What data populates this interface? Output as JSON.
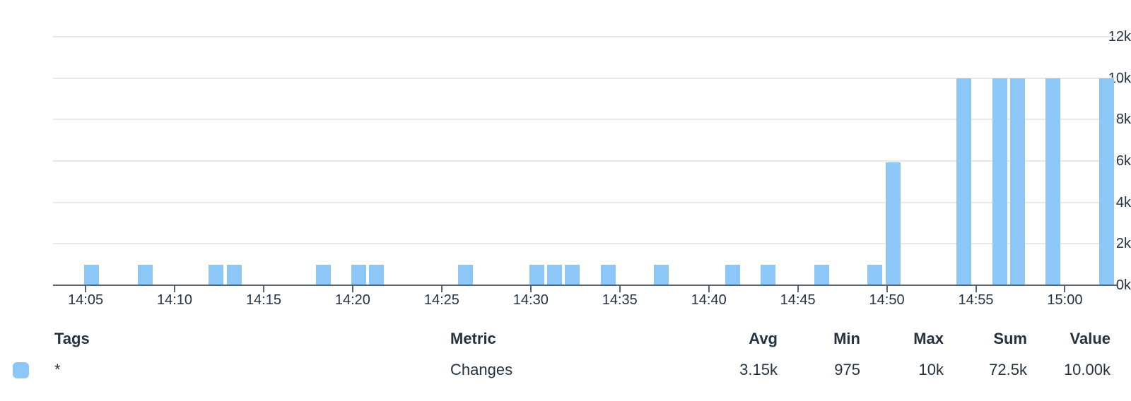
{
  "colors": {
    "bar": "#8DC7F7",
    "grid": "#E8E8E8",
    "axis": "#5A6572",
    "text": "#243342",
    "background": "#FFFFFF"
  },
  "chart_data": {
    "type": "bar",
    "title": "",
    "series": [
      {
        "name": "Changes",
        "color": "#8DC7F7"
      }
    ],
    "x": [
      "14:05",
      "14:08",
      "14:12",
      "14:13",
      "14:18",
      "14:20",
      "14:21",
      "14:26",
      "14:30",
      "14:31",
      "14:32",
      "14:34",
      "14:37",
      "14:41",
      "14:43",
      "14:46",
      "14:49",
      "14:50",
      "14:54",
      "14:56",
      "14:57",
      "14:59",
      "15:02"
    ],
    "values": [
      975,
      975,
      975,
      975,
      975,
      975,
      975,
      975,
      975,
      975,
      975,
      975,
      975,
      975,
      975,
      975,
      975,
      5925,
      10000,
      10000,
      10000,
      10000,
      10000
    ],
    "minute_offsets": [
      0,
      3,
      7,
      8,
      13,
      15,
      16,
      21,
      25,
      26,
      27,
      29,
      32,
      36,
      38,
      41,
      44,
      45,
      49,
      51,
      52,
      54,
      57
    ],
    "x_tick_labels": [
      "14:05",
      "14:10",
      "14:15",
      "14:20",
      "14:25",
      "14:30",
      "14:35",
      "14:40",
      "14:45",
      "14:50",
      "14:55",
      "15:00"
    ],
    "x_tick_offsets": [
      0,
      5,
      10,
      15,
      20,
      25,
      30,
      35,
      40,
      45,
      50,
      55
    ],
    "x_domain_minutes": [
      -1.83,
      57.92
    ],
    "y_tick_labels": [
      "0k",
      "2k",
      "4k",
      "6k",
      "8k",
      "10k",
      "12k"
    ],
    "ylim": [
      0,
      12000
    ],
    "grid": "horizontal-only",
    "legend_position": "bottom-table"
  },
  "legend": {
    "headers": {
      "tags": "Tags",
      "metric": "Metric",
      "avg": "Avg",
      "min": "Min",
      "max": "Max",
      "sum": "Sum",
      "value": "Value"
    },
    "row": {
      "swatch_color": "#8DC7F7",
      "tags": "*",
      "metric": "Changes",
      "avg": "3.15k",
      "min": "975",
      "max": "10k",
      "sum": "72.5k",
      "value": "10.00k"
    }
  }
}
